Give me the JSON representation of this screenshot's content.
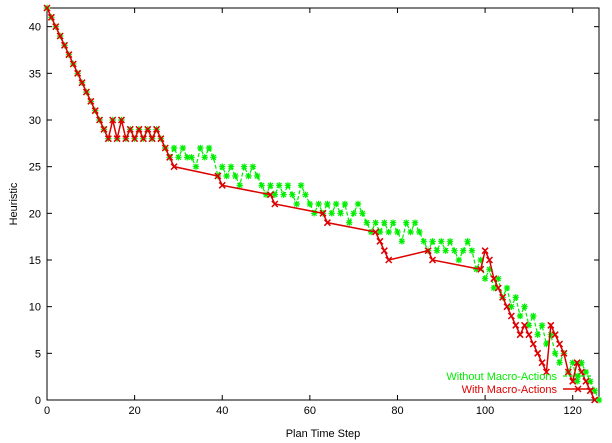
{
  "chart_data": {
    "type": "line",
    "title": "",
    "xlabel": "Plan Time Step",
    "ylabel": "Heuristic",
    "xlim": [
      0,
      126
    ],
    "ylim": [
      0,
      42
    ],
    "xticks": [
      0,
      20,
      40,
      60,
      80,
      100,
      120
    ],
    "yticks": [
      0,
      5,
      10,
      15,
      20,
      25,
      30,
      35,
      40
    ],
    "legend_position": "bottom-right",
    "grid": false,
    "series": [
      {
        "name": "Without Macro-Actions",
        "color": "#00ee00",
        "line_style": "dashed",
        "marker": "star",
        "points": [
          [
            0,
            42
          ],
          [
            1,
            41
          ],
          [
            2,
            40
          ],
          [
            3,
            39
          ],
          [
            4,
            38
          ],
          [
            5,
            37
          ],
          [
            6,
            36
          ],
          [
            7,
            35
          ],
          [
            8,
            34
          ],
          [
            9,
            33
          ],
          [
            10,
            32
          ],
          [
            11,
            31
          ],
          [
            12,
            30
          ],
          [
            13,
            29
          ],
          [
            14,
            28
          ],
          [
            15,
            30
          ],
          [
            16,
            28
          ],
          [
            17,
            30
          ],
          [
            18,
            28
          ],
          [
            19,
            29
          ],
          [
            20,
            28
          ],
          [
            21,
            29
          ],
          [
            22,
            28
          ],
          [
            23,
            29
          ],
          [
            24,
            28
          ],
          [
            25,
            29
          ],
          [
            26,
            28
          ],
          [
            27,
            27
          ],
          [
            28,
            26
          ],
          [
            29,
            27
          ],
          [
            30,
            26
          ],
          [
            31,
            27
          ],
          [
            32,
            26
          ],
          [
            33,
            26
          ],
          [
            34,
            25
          ],
          [
            35,
            27
          ],
          [
            36,
            26
          ],
          [
            37,
            27
          ],
          [
            38,
            26
          ],
          [
            39,
            24
          ],
          [
            40,
            25
          ],
          [
            41,
            24
          ],
          [
            42,
            25
          ],
          [
            43,
            24
          ],
          [
            44,
            23
          ],
          [
            45,
            25
          ],
          [
            46,
            24
          ],
          [
            47,
            25
          ],
          [
            48,
            24
          ],
          [
            49,
            23
          ],
          [
            50,
            22
          ],
          [
            51,
            23
          ],
          [
            52,
            22
          ],
          [
            53,
            23
          ],
          [
            54,
            22
          ],
          [
            55,
            23
          ],
          [
            56,
            22
          ],
          [
            57,
            21
          ],
          [
            58,
            23
          ],
          [
            59,
            22
          ],
          [
            60,
            21
          ],
          [
            61,
            20
          ],
          [
            62,
            21
          ],
          [
            63,
            20
          ],
          [
            64,
            21
          ],
          [
            65,
            20
          ],
          [
            66,
            21
          ],
          [
            67,
            20
          ],
          [
            68,
            21
          ],
          [
            69,
            19
          ],
          [
            70,
            20
          ],
          [
            71,
            21
          ],
          [
            72,
            20
          ],
          [
            73,
            19
          ],
          [
            74,
            18
          ],
          [
            75,
            19
          ],
          [
            76,
            18
          ],
          [
            77,
            19
          ],
          [
            78,
            18
          ],
          [
            79,
            19
          ],
          [
            80,
            18
          ],
          [
            81,
            17
          ],
          [
            82,
            19
          ],
          [
            83,
            18
          ],
          [
            84,
            19
          ],
          [
            85,
            18
          ],
          [
            86,
            17
          ],
          [
            87,
            16
          ],
          [
            88,
            17
          ],
          [
            89,
            16
          ],
          [
            90,
            17
          ],
          [
            91,
            16
          ],
          [
            92,
            17
          ],
          [
            93,
            16
          ],
          [
            94,
            15
          ],
          [
            95,
            16
          ],
          [
            96,
            17
          ],
          [
            97,
            16
          ],
          [
            98,
            14
          ],
          [
            99,
            15
          ],
          [
            100,
            13
          ],
          [
            101,
            14
          ],
          [
            102,
            12
          ],
          [
            103,
            13
          ],
          [
            104,
            11
          ],
          [
            105,
            12
          ],
          [
            106,
            10
          ],
          [
            107,
            11
          ],
          [
            108,
            9
          ],
          [
            109,
            10
          ],
          [
            110,
            8
          ],
          [
            111,
            9
          ],
          [
            112,
            7
          ],
          [
            113,
            8
          ],
          [
            114,
            6
          ],
          [
            115,
            7
          ],
          [
            116,
            5
          ],
          [
            117,
            4
          ],
          [
            118,
            5
          ],
          [
            119,
            3
          ],
          [
            120,
            4
          ],
          [
            121,
            2
          ],
          [
            122,
            4
          ],
          [
            123,
            3
          ],
          [
            124,
            2
          ],
          [
            125,
            1
          ],
          [
            126,
            0
          ]
        ]
      },
      {
        "name": "With Macro-Actions",
        "color": "#dd0000",
        "line_style": "solid",
        "marker": "x",
        "points": [
          [
            0,
            42
          ],
          [
            1,
            41
          ],
          [
            2,
            40
          ],
          [
            3,
            39
          ],
          [
            4,
            38
          ],
          [
            5,
            37
          ],
          [
            6,
            36
          ],
          [
            7,
            35
          ],
          [
            8,
            34
          ],
          [
            9,
            33
          ],
          [
            10,
            32
          ],
          [
            11,
            31
          ],
          [
            12,
            30
          ],
          [
            13,
            29
          ],
          [
            14,
            28
          ],
          [
            15,
            30
          ],
          [
            16,
            28
          ],
          [
            17,
            30
          ],
          [
            18,
            28
          ],
          [
            19,
            29
          ],
          [
            20,
            28
          ],
          [
            21,
            29
          ],
          [
            22,
            28
          ],
          [
            23,
            29
          ],
          [
            24,
            28
          ],
          [
            25,
            29
          ],
          [
            26,
            28
          ],
          [
            27,
            27
          ],
          [
            28,
            26
          ],
          [
            29,
            25
          ],
          [
            39,
            24
          ],
          [
            40,
            23
          ],
          [
            51,
            22
          ],
          [
            52,
            21
          ],
          [
            63,
            20
          ],
          [
            64,
            19
          ],
          [
            75,
            18
          ],
          [
            76,
            17
          ],
          [
            77,
            16
          ],
          [
            78,
            15
          ],
          [
            87,
            16
          ],
          [
            88,
            15
          ],
          [
            99,
            14
          ],
          [
            100,
            16
          ],
          [
            101,
            15
          ],
          [
            102,
            13
          ],
          [
            103,
            12
          ],
          [
            104,
            11
          ],
          [
            105,
            10
          ],
          [
            106,
            9
          ],
          [
            107,
            8
          ],
          [
            108,
            7
          ],
          [
            109,
            8
          ],
          [
            110,
            7
          ],
          [
            111,
            6
          ],
          [
            112,
            5
          ],
          [
            113,
            4
          ],
          [
            114,
            3
          ],
          [
            115,
            8
          ],
          [
            116,
            7
          ],
          [
            117,
            6
          ],
          [
            118,
            5
          ],
          [
            119,
            3
          ],
          [
            120,
            2
          ],
          [
            121,
            4
          ],
          [
            122,
            3
          ],
          [
            123,
            2
          ],
          [
            124,
            1
          ],
          [
            125,
            0
          ]
        ]
      }
    ]
  }
}
